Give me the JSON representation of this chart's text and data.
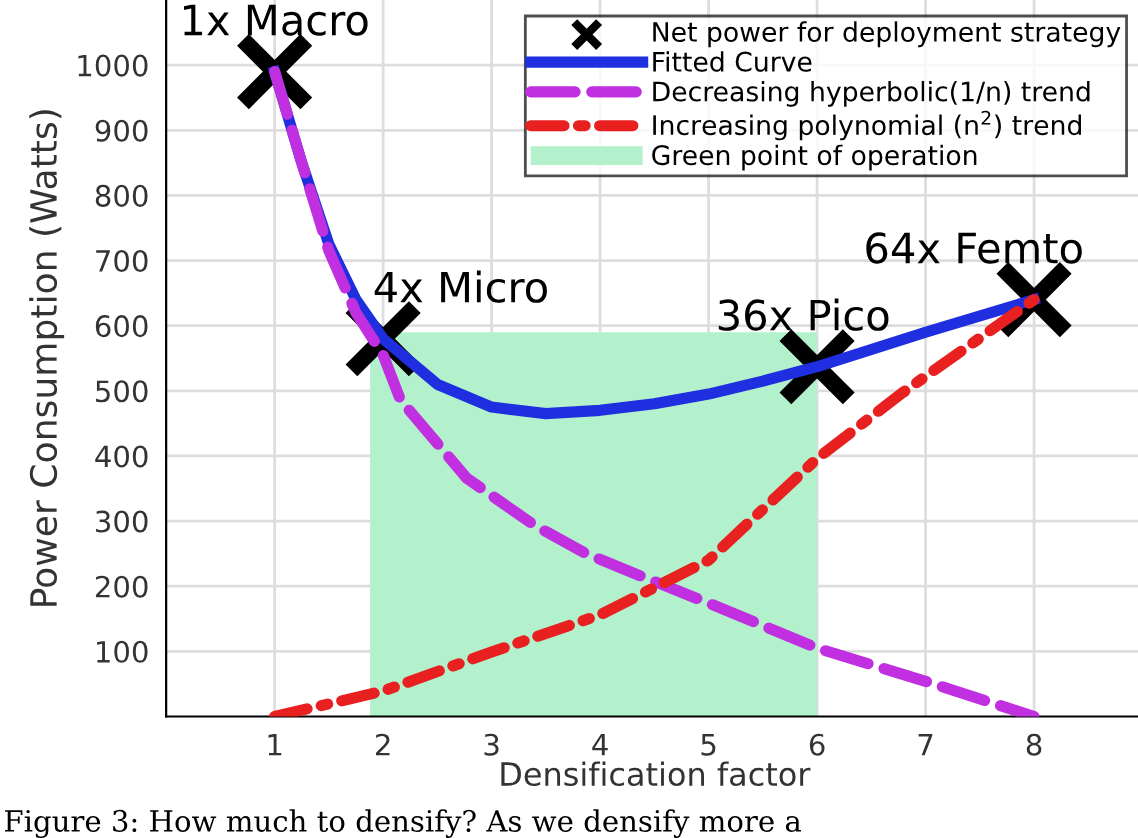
{
  "chart_data": {
    "type": "line",
    "xlabel": "Densification factor",
    "ylabel": "Power Consumption (Watts)",
    "xlim": [
      0,
      9
    ],
    "xticks": [
      1,
      2,
      3,
      4,
      5,
      6,
      7,
      8
    ],
    "ylim": [
      0,
      1100
    ],
    "yticks": [
      100,
      200,
      300,
      400,
      500,
      600,
      700,
      800,
      900,
      1000
    ],
    "grid": true,
    "legend": "top right",
    "series": [
      {
        "name": "Net power for deployment strategy",
        "type": "scatter",
        "marker": "cross",
        "color": "#000000",
        "x": [
          1,
          2,
          6,
          8
        ],
        "values": [
          990,
          580,
          537,
          640
        ]
      },
      {
        "name": "Fitted Curve",
        "color": "#1f2fe0",
        "line_style": "solid",
        "x": [
          1,
          1.25,
          1.5,
          1.75,
          2,
          2.5,
          3,
          3.5,
          4,
          4.5,
          5,
          5.5,
          6,
          7,
          8
        ],
        "values": [
          990,
          850,
          725,
          640,
          580,
          510,
          475,
          465,
          470,
          480,
          495,
          515,
          537,
          590,
          640
        ]
      },
      {
        "name": "Decreasing hyperbolic(1/n) trend",
        "color": "#c030e0",
        "line_style": "dashed",
        "x": [
          1,
          1.25,
          1.5,
          1.75,
          2,
          2.16,
          2.77,
          3.39,
          3.87,
          4.37,
          5,
          6,
          7,
          8
        ],
        "values": [
          990,
          850,
          715,
          620,
          555,
          486,
          366,
          294,
          250,
          216,
          174,
          105,
          54,
          0
        ]
      },
      {
        "name": "Increasing polynomial (n$^{2}$) trend",
        "color": "#e82020",
        "line_style": "dashdot",
        "x": [
          1,
          2,
          3,
          4,
          5,
          6,
          6.77,
          8
        ],
        "values": [
          0,
          39,
          99,
          156,
          240,
          396,
          495,
          640
        ]
      },
      {
        "name": "Green point of operation",
        "type": "area",
        "color": "#b3f0cc",
        "x": [
          1.88,
          6
        ],
        "values": [
          590,
          590
        ]
      }
    ],
    "annotations": [
      {
        "text": "1x Macro",
        "x": 1,
        "y": 990
      },
      {
        "text": "4x Micro",
        "x": 2,
        "y": 580
      },
      {
        "text": "36x Pico",
        "x": 6,
        "y": 537
      },
      {
        "text": "64x Femto",
        "x": 8,
        "y": 640
      },
      "Figure 3: How much to densify? As we densify more a"
    ]
  }
}
